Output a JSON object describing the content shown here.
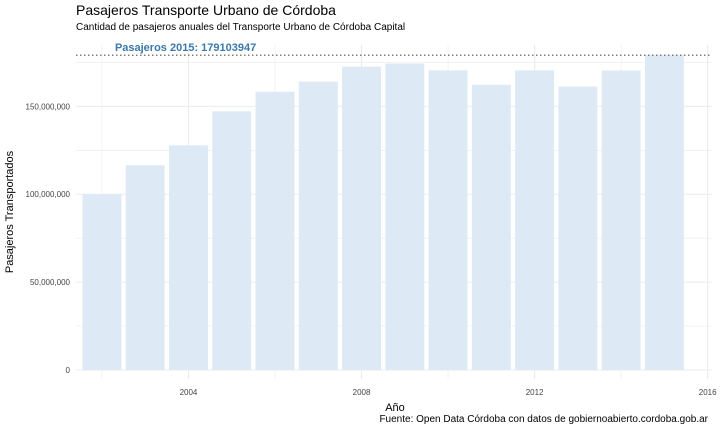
{
  "chart_data": {
    "type": "bar",
    "title": "Pasajeros Transporte Urbano de Córdoba",
    "subtitle": "Cantidad de pasajeros anuales del Transporte Urbano de Córdoba Capital",
    "xlabel": "Año",
    "ylabel": "Pasajeros Transportados",
    "caption": "Fuente: Open Data Córdoba con datos de gobiernoabierto.cordoba.gob.ar",
    "x": [
      2002,
      2003,
      2004,
      2005,
      2006,
      2007,
      2008,
      2009,
      2010,
      2011,
      2012,
      2013,
      2014,
      2015
    ],
    "values": [
      100000000,
      116500000,
      127800000,
      147200000,
      158300000,
      164100000,
      172600000,
      174400000,
      170500000,
      162300000,
      170500000,
      161300000,
      170400000,
      179103947
    ],
    "xlim": [
      2001.4,
      2016.1
    ],
    "ylim": [
      0,
      180000000
    ],
    "xticks": [
      2004,
      2008,
      2012,
      2016
    ],
    "yticks": [
      0,
      50000000,
      100000000,
      150000000
    ],
    "ytick_labels": [
      "0",
      "50,000,000",
      "100,000,000",
      "150,000,000"
    ],
    "reference_line": {
      "value": 179103947,
      "style": "dotted",
      "label": "Pasajeros 2015: 179103947"
    },
    "grid": true,
    "legend": "none",
    "colors": {
      "bar": "#dde9f5",
      "annotation": "#3a78ad",
      "grid": "#ebebeb",
      "reference_line": "#555555"
    }
  }
}
